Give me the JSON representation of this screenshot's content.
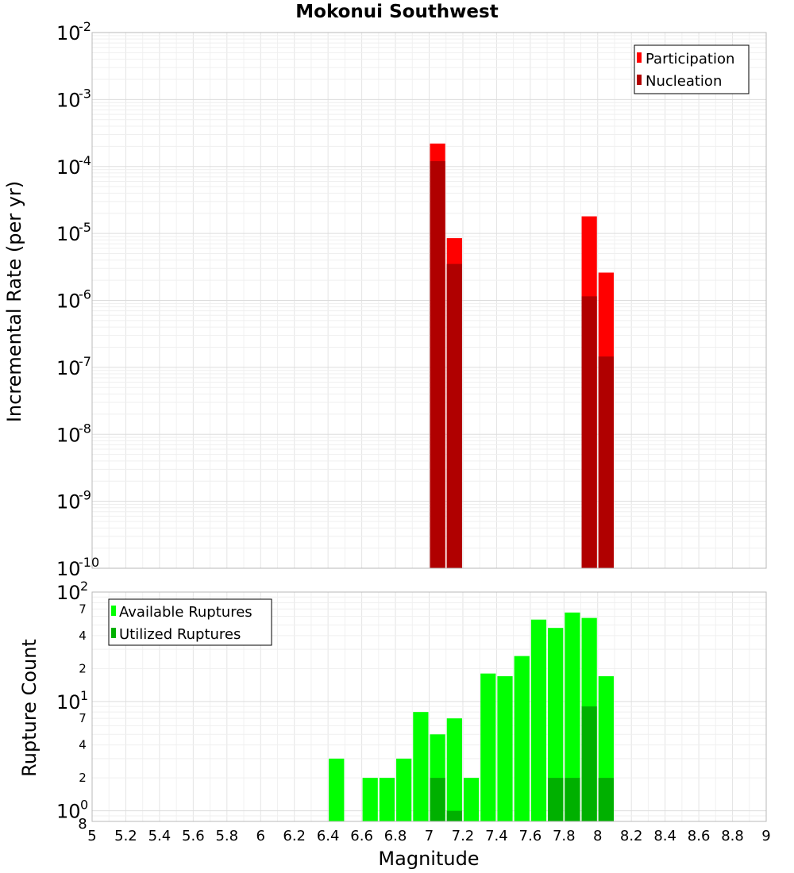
{
  "chart_data": [
    {
      "type": "bar",
      "title": "Mokonui Southwest",
      "xlabel": "",
      "ylabel": "Incremental Rate (per yr)",
      "yscale": "log",
      "ylim": [
        1e-10,
        0.01
      ],
      "xlim": [
        5,
        9
      ],
      "grid": true,
      "legend_placement": "top-right",
      "x": [
        7.05,
        7.15,
        7.95,
        8.05
      ],
      "series": [
        {
          "name": "Participation",
          "color": "#ff0000",
          "values": [
            0.00022,
            8.5e-06,
            1.8e-05,
            2.6e-06
          ]
        },
        {
          "name": "Nucleation",
          "color": "#b00000",
          "values": [
            0.00012,
            3.5e-06,
            1.15e-06,
            1.45e-07
          ]
        }
      ],
      "y_ticks": [
        {
          "base": "10",
          "exp": "-2"
        },
        {
          "base": "10",
          "exp": "-3"
        },
        {
          "base": "10",
          "exp": "-4"
        },
        {
          "base": "10",
          "exp": "-5"
        },
        {
          "base": "10",
          "exp": "-6"
        },
        {
          "base": "10",
          "exp": "-7"
        },
        {
          "base": "10",
          "exp": "-8"
        },
        {
          "base": "10",
          "exp": "-9"
        },
        {
          "base": "10",
          "exp": "-10"
        }
      ]
    },
    {
      "type": "bar",
      "title": "",
      "xlabel": "Magnitude",
      "ylabel": "Rupture Count",
      "yscale": "log",
      "ylim": [
        0.8,
        100
      ],
      "xlim": [
        5,
        9
      ],
      "grid": true,
      "legend_placement": "top-left",
      "x": [
        6.45,
        6.65,
        6.75,
        6.85,
        6.95,
        7.05,
        7.15,
        7.25,
        7.35,
        7.45,
        7.55,
        7.65,
        7.75,
        7.85,
        7.95,
        8.05
      ],
      "series": [
        {
          "name": "Available Ruptures",
          "color": "#00ff00",
          "values": [
            3,
            2,
            2,
            3,
            8,
            5,
            7,
            2,
            18,
            17,
            26,
            56,
            47,
            65,
            58,
            17
          ]
        },
        {
          "name": "Utilized Ruptures",
          "color": "#00b000",
          "values": [
            0,
            0,
            0,
            0,
            0,
            2,
            1,
            0,
            0,
            0,
            0,
            0,
            2,
            2,
            9,
            2
          ]
        }
      ],
      "x_ticks": [
        "5",
        "5.2",
        "5.4",
        "5.6",
        "5.8",
        "6",
        "6.2",
        "6.4",
        "6.6",
        "6.8",
        "7",
        "7.2",
        "7.4",
        "7.6",
        "7.8",
        "8",
        "8.2",
        "8.4",
        "8.6",
        "8.8",
        "9"
      ],
      "y_major_ticks": [
        {
          "base": "10",
          "exp": "2"
        },
        {
          "base": "10",
          "exp": "1"
        },
        {
          "base": "10",
          "exp": "0"
        }
      ],
      "y_minor_ticks": [
        "7",
        "4",
        "2",
        "7",
        "4",
        "2",
        "8"
      ]
    }
  ]
}
